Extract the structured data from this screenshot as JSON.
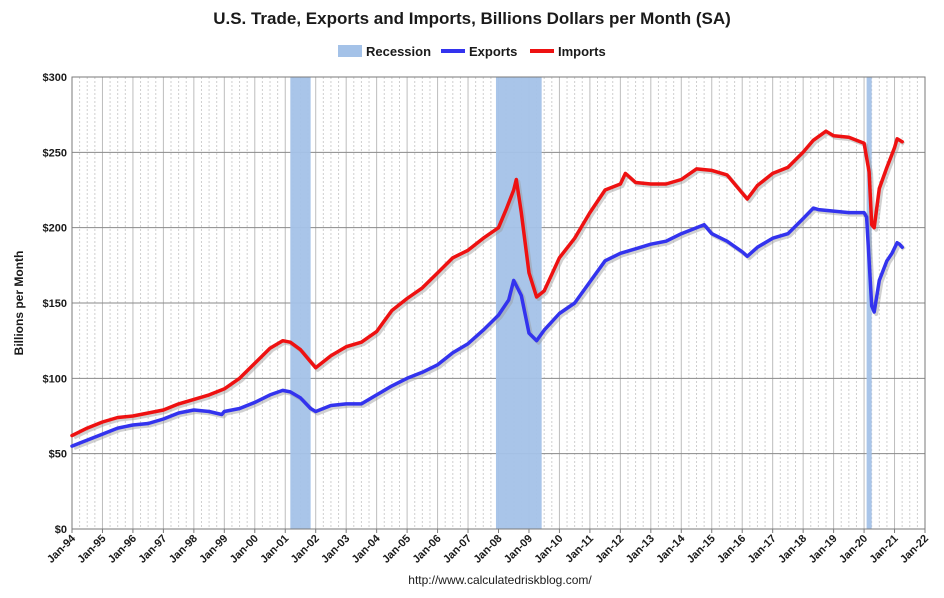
{
  "chart_data": {
    "type": "line",
    "title": "U.S. Trade, Exports and Imports, Billions Dollars per Month (SA)",
    "ylabel": "Billions per Month",
    "xlabel": "",
    "source": "http://www.calculatedriskblog.com/",
    "ylim": [
      0,
      300
    ],
    "yticks": [
      0,
      50,
      100,
      150,
      200,
      250,
      300
    ],
    "ytick_labels": [
      "$0",
      "$50",
      "$100",
      "$150",
      "$200",
      "$250",
      "$300"
    ],
    "xlim": [
      "1994-01",
      "2022-01"
    ],
    "xtick_labels": [
      "Jan-94",
      "Jan-95",
      "Jan-96",
      "Jan-97",
      "Jan-98",
      "Jan-99",
      "Jan-00",
      "Jan-01",
      "Jan-02",
      "Jan-03",
      "Jan-04",
      "Jan-05",
      "Jan-06",
      "Jan-07",
      "Jan-08",
      "Jan-09",
      "Jan-10",
      "Jan-11",
      "Jan-12",
      "Jan-13",
      "Jan-14",
      "Jan-15",
      "Jan-16",
      "Jan-17",
      "Jan-18",
      "Jan-19",
      "Jan-20",
      "Jan-21",
      "Jan-22"
    ],
    "grid": true,
    "legend_position": "top-center",
    "recessions": [
      {
        "start": "2001-03",
        "end": "2001-11"
      },
      {
        "start": "2007-12",
        "end": "2009-06"
      },
      {
        "start": "2020-02",
        "end": "2020-04"
      }
    ],
    "series": [
      {
        "name": "Exports",
        "color": "#3333ee",
        "points": [
          [
            "1994-01",
            55
          ],
          [
            "1994-07",
            59
          ],
          [
            "1995-01",
            63
          ],
          [
            "1995-07",
            67
          ],
          [
            "1996-01",
            69
          ],
          [
            "1996-07",
            70
          ],
          [
            "1997-01",
            73
          ],
          [
            "1997-07",
            77
          ],
          [
            "1998-01",
            79
          ],
          [
            "1998-07",
            78
          ],
          [
            "1998-12",
            76
          ],
          [
            "1999-01",
            78
          ],
          [
            "1999-07",
            80
          ],
          [
            "2000-01",
            84
          ],
          [
            "2000-07",
            89
          ],
          [
            "2000-12",
            92
          ],
          [
            "2001-03",
            91
          ],
          [
            "2001-07",
            87
          ],
          [
            "2001-11",
            80
          ],
          [
            "2002-01",
            78
          ],
          [
            "2002-07",
            82
          ],
          [
            "2003-01",
            83
          ],
          [
            "2003-07",
            83
          ],
          [
            "2004-01",
            89
          ],
          [
            "2004-07",
            95
          ],
          [
            "2005-01",
            100
          ],
          [
            "2005-07",
            104
          ],
          [
            "2006-01",
            109
          ],
          [
            "2006-07",
            117
          ],
          [
            "2007-01",
            123
          ],
          [
            "2007-07",
            132
          ],
          [
            "2008-01",
            142
          ],
          [
            "2008-05",
            152
          ],
          [
            "2008-07",
            165
          ],
          [
            "2008-10",
            155
          ],
          [
            "2009-01",
            130
          ],
          [
            "2009-04",
            125
          ],
          [
            "2009-07",
            132
          ],
          [
            "2010-01",
            143
          ],
          [
            "2010-07",
            150
          ],
          [
            "2011-01",
            164
          ],
          [
            "2011-07",
            178
          ],
          [
            "2012-01",
            183
          ],
          [
            "2012-07",
            186
          ],
          [
            "2013-01",
            189
          ],
          [
            "2013-07",
            191
          ],
          [
            "2014-01",
            196
          ],
          [
            "2014-07",
            200
          ],
          [
            "2014-10",
            202
          ],
          [
            "2015-01",
            196
          ],
          [
            "2015-07",
            191
          ],
          [
            "2016-01",
            184
          ],
          [
            "2016-03",
            181
          ],
          [
            "2016-07",
            187
          ],
          [
            "2017-01",
            193
          ],
          [
            "2017-07",
            196
          ],
          [
            "2018-01",
            206
          ],
          [
            "2018-05",
            213
          ],
          [
            "2018-07",
            212
          ],
          [
            "2019-01",
            211
          ],
          [
            "2019-07",
            210
          ],
          [
            "2020-01",
            210
          ],
          [
            "2020-02",
            207
          ],
          [
            "2020-04",
            148
          ],
          [
            "2020-05",
            144
          ],
          [
            "2020-07",
            165
          ],
          [
            "2020-10",
            178
          ],
          [
            "2020-12",
            183
          ],
          [
            "2021-02",
            190
          ],
          [
            "2021-03",
            189
          ],
          [
            "2021-04",
            187
          ]
        ]
      },
      {
        "name": "Imports",
        "color": "#ee1111",
        "points": [
          [
            "1994-01",
            62
          ],
          [
            "1994-07",
            67
          ],
          [
            "1995-01",
            71
          ],
          [
            "1995-07",
            74
          ],
          [
            "1996-01",
            75
          ],
          [
            "1996-07",
            77
          ],
          [
            "1997-01",
            79
          ],
          [
            "1997-07",
            83
          ],
          [
            "1998-01",
            86
          ],
          [
            "1998-07",
            89
          ],
          [
            "1999-01",
            93
          ],
          [
            "1999-07",
            100
          ],
          [
            "2000-01",
            110
          ],
          [
            "2000-07",
            120
          ],
          [
            "2000-12",
            125
          ],
          [
            "2001-03",
            124
          ],
          [
            "2001-07",
            119
          ],
          [
            "2001-11",
            111
          ],
          [
            "2002-01",
            107
          ],
          [
            "2002-07",
            115
          ],
          [
            "2003-01",
            121
          ],
          [
            "2003-07",
            124
          ],
          [
            "2004-01",
            131
          ],
          [
            "2004-07",
            145
          ],
          [
            "2005-01",
            153
          ],
          [
            "2005-07",
            160
          ],
          [
            "2006-01",
            170
          ],
          [
            "2006-07",
            180
          ],
          [
            "2007-01",
            185
          ],
          [
            "2007-07",
            193
          ],
          [
            "2008-01",
            200
          ],
          [
            "2008-04",
            212
          ],
          [
            "2008-07",
            225
          ],
          [
            "2008-08",
            232
          ],
          [
            "2008-10",
            210
          ],
          [
            "2009-01",
            170
          ],
          [
            "2009-04",
            154
          ],
          [
            "2009-07",
            158
          ],
          [
            "2010-01",
            180
          ],
          [
            "2010-07",
            193
          ],
          [
            "2011-01",
            210
          ],
          [
            "2011-07",
            225
          ],
          [
            "2012-01",
            229
          ],
          [
            "2012-03",
            236
          ],
          [
            "2012-07",
            230
          ],
          [
            "2013-01",
            229
          ],
          [
            "2013-07",
            229
          ],
          [
            "2014-01",
            232
          ],
          [
            "2014-07",
            239
          ],
          [
            "2015-01",
            238
          ],
          [
            "2015-07",
            235
          ],
          [
            "2016-01",
            223
          ],
          [
            "2016-03",
            219
          ],
          [
            "2016-07",
            228
          ],
          [
            "2017-01",
            236
          ],
          [
            "2017-07",
            240
          ],
          [
            "2018-01",
            250
          ],
          [
            "2018-05",
            258
          ],
          [
            "2018-10",
            264
          ],
          [
            "2019-01",
            261
          ],
          [
            "2019-07",
            260
          ],
          [
            "2020-01",
            256
          ],
          [
            "2020-03",
            237
          ],
          [
            "2020-04",
            202
          ],
          [
            "2020-05",
            200
          ],
          [
            "2020-07",
            226
          ],
          [
            "2020-10",
            240
          ],
          [
            "2021-01",
            253
          ],
          [
            "2021-02",
            259
          ],
          [
            "2021-04",
            257
          ]
        ]
      }
    ],
    "legend": [
      {
        "name": "Recession",
        "color": "#a4c2e8",
        "kind": "patch"
      },
      {
        "name": "Exports",
        "color": "#3333ee",
        "kind": "line"
      },
      {
        "name": "Imports",
        "color": "#ee1111",
        "kind": "line"
      }
    ]
  }
}
